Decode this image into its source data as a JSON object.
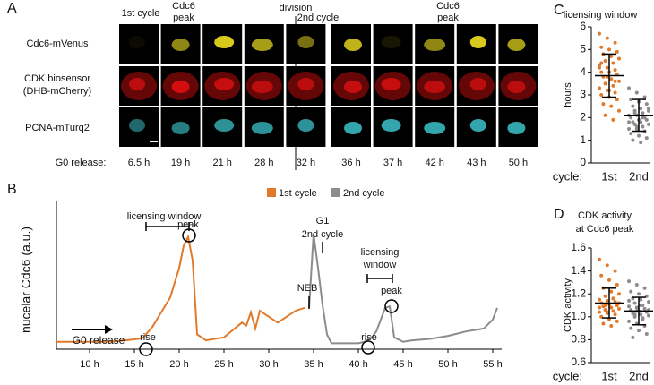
{
  "panel_labels": [
    "A",
    "B",
    "C",
    "D"
  ],
  "panel_a": {
    "headers": [
      "1st cycle",
      "Cdc6",
      "peak",
      "division",
      "2nd cycle",
      "Cdc6",
      "peak"
    ],
    "row_labels": [
      "Cdc6-mVenus",
      "CDK biosensor",
      "(DHB-mCherry)",
      "PCNA-mTurq2"
    ],
    "time_label": "G0 release:",
    "times": [
      "6.5 h",
      "19 h",
      "21 h",
      "28 h",
      "32 h",
      "36 h",
      "37 h",
      "42 h",
      "43 h",
      "50 h"
    ]
  },
  "chart_data": [
    {
      "type": "line",
      "ylabel": "nucelar Cdc6 (a.u.)",
      "xlim": [
        6.3,
        56
      ],
      "ylim": [
        0,
        100
      ],
      "xticks": [
        {
          "value": 10,
          "label": "10 h"
        },
        {
          "value": 15,
          "label": "15 h"
        },
        {
          "value": 20,
          "label": "20 h"
        },
        {
          "value": 25,
          "label": "25 h"
        },
        {
          "value": 30,
          "label": "30 h"
        },
        {
          "value": 35,
          "label": "35 h"
        },
        {
          "value": 40,
          "label": "40 h"
        },
        {
          "value": 45,
          "label": "45 h"
        },
        {
          "value": 50,
          "label": "50 h"
        },
        {
          "value": 55,
          "label": "55 h"
        }
      ],
      "legend": "top",
      "series": [
        {
          "name": "1st cycle",
          "color": "#e07a2a",
          "x": [
            6.3,
            8,
            10,
            12,
            14,
            15.5,
            16,
            17,
            18,
            19,
            19.5,
            20,
            20.5,
            21,
            21.5,
            22,
            23,
            24,
            25,
            26,
            27,
            27.5,
            28,
            28.5,
            29,
            30,
            31,
            32,
            33,
            34
          ],
          "values": [
            5,
            5,
            5,
            5,
            6,
            7,
            8,
            15,
            25,
            35,
            45,
            55,
            70,
            76,
            60,
            10,
            6,
            7,
            8,
            13,
            18,
            16,
            25,
            14,
            26,
            22,
            18,
            22,
            26,
            28
          ]
        },
        {
          "name": "2nd cycle",
          "color": "#8c8c8c",
          "x": [
            34.5,
            35,
            35.5,
            36,
            36.5,
            37,
            38,
            39,
            40,
            40.7,
            41.5,
            42,
            42.5,
            43,
            43.5,
            44,
            45,
            46,
            48,
            50,
            52,
            54,
            55,
            55.5
          ],
          "values": [
            28,
            78,
            55,
            30,
            10,
            4,
            4,
            4,
            4,
            5,
            8,
            12,
            20,
            28,
            29,
            8,
            5,
            6,
            7,
            9,
            12,
            14,
            20,
            28
          ]
        }
      ],
      "annotations": [
        "licensing window",
        "peak",
        "rise",
        "G0 release",
        "NEB",
        "G1",
        "2nd cycle",
        "licensing",
        "window",
        "peak",
        "rise"
      ]
    },
    {
      "type": "strip",
      "title": "licensing window",
      "ylabel": "hours",
      "xlabel": "cycle:",
      "categories": [
        "1st",
        "2nd"
      ],
      "ylim": [
        0,
        6
      ],
      "yticks": [
        0,
        1,
        2,
        3,
        4,
        5,
        6
      ],
      "series": [
        {
          "color": "#e07a2a",
          "mean": 3.85,
          "sd": 0.95,
          "values": [
            5.7,
            5.5,
            5.3,
            5.1,
            5.0,
            4.9,
            4.8,
            4.7,
            4.6,
            4.5,
            4.4,
            4.3,
            4.2,
            4.1,
            4.0,
            4.0,
            3.9,
            3.8,
            3.7,
            3.6,
            3.5,
            3.4,
            3.3,
            3.2,
            3.1,
            3.0,
            2.9,
            2.8,
            2.6,
            2.5,
            2.3,
            2.1,
            1.9,
            4.2,
            3.8,
            3.6,
            4.4,
            3.2
          ]
        },
        {
          "color": "#8c8c8c",
          "mean": 2.1,
          "sd": 0.7,
          "values": [
            3.3,
            3.1,
            2.9,
            2.8,
            2.7,
            2.6,
            2.5,
            2.4,
            2.3,
            2.3,
            2.2,
            2.1,
            2.1,
            2.0,
            2.0,
            1.9,
            1.9,
            1.8,
            1.8,
            1.7,
            1.7,
            1.6,
            1.5,
            1.5,
            1.4,
            1.3,
            1.2,
            1.1,
            1.0,
            0.9,
            2.4,
            2.2,
            2.0,
            1.8,
            1.6
          ]
        }
      ]
    },
    {
      "type": "strip",
      "title": [
        "CDK activity",
        "at Cdc6 peak"
      ],
      "ylabel": "CDK activity",
      "xlabel": "cycle:",
      "categories": [
        "1st",
        "2nd"
      ],
      "ylim": [
        0.6,
        1.6
      ],
      "yticks": [
        0.6,
        0.8,
        {
          "value": 1,
          "label": "1.0"
        },
        1.2,
        1.4,
        1.6
      ],
      "series": [
        {
          "color": "#e07a2a",
          "mean": 1.12,
          "sd": 0.13,
          "values": [
            1.5,
            1.45,
            1.4,
            1.36,
            1.32,
            1.28,
            1.25,
            1.22,
            1.2,
            1.18,
            1.16,
            1.15,
            1.14,
            1.13,
            1.12,
            1.11,
            1.1,
            1.09,
            1.08,
            1.07,
            1.06,
            1.05,
            1.04,
            1.03,
            1.02,
            1.0,
            0.98,
            0.96,
            0.94,
            0.92,
            1.12,
            1.1,
            1.16,
            1.08,
            1.04
          ]
        },
        {
          "color": "#8c8c8c",
          "mean": 1.05,
          "sd": 0.12,
          "values": [
            1.31,
            1.28,
            1.25,
            1.22,
            1.2,
            1.18,
            1.16,
            1.15,
            1.13,
            1.12,
            1.1,
            1.09,
            1.08,
            1.07,
            1.06,
            1.05,
            1.04,
            1.03,
            1.02,
            1.01,
            1.0,
            0.98,
            0.96,
            0.94,
            0.92,
            0.9,
            0.88,
            0.85,
            0.82,
            1.1,
            1.06,
            1.02,
            0.99,
            1.14,
            1.05
          ]
        }
      ]
    }
  ]
}
